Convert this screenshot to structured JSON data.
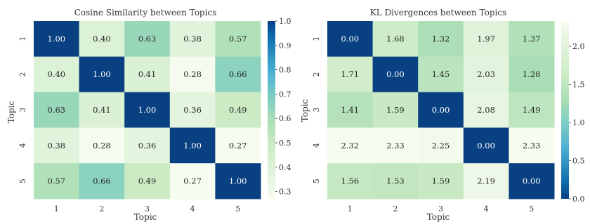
{
  "chart_data": [
    {
      "type": "heatmap",
      "title": "Cosine Similarity between Topics",
      "xlabel": "Topic",
      "ylabel": "Topic",
      "x_categories": [
        "1",
        "2",
        "3",
        "4",
        "5"
      ],
      "y_categories": [
        "1",
        "2",
        "3",
        "4",
        "5"
      ],
      "values": [
        [
          1.0,
          0.4,
          0.63,
          0.38,
          0.57
        ],
        [
          0.4,
          1.0,
          0.41,
          0.28,
          0.66
        ],
        [
          0.63,
          0.41,
          1.0,
          0.36,
          0.49
        ],
        [
          0.38,
          0.28,
          0.36,
          1.0,
          0.27
        ],
        [
          0.57,
          0.66,
          0.49,
          0.27,
          1.0
        ]
      ],
      "cell_labels": [
        [
          "1.00",
          "0.40",
          "0.63",
          "0.38",
          "0.57"
        ],
        [
          "0.40",
          "1.00",
          "0.41",
          "0.28",
          "0.66"
        ],
        [
          "0.63",
          "0.41",
          "1.00",
          "0.36",
          "0.49"
        ],
        [
          "0.38",
          "0.28",
          "0.36",
          "1.00",
          "0.27"
        ],
        [
          "0.57",
          "0.66",
          "0.49",
          "0.27",
          "1.00"
        ]
      ],
      "color_range": [
        0.27,
        1.0
      ],
      "colormap": "GnBu",
      "colorbar_ticks": [
        {
          "value": 1.0,
          "label": "1.0"
        },
        {
          "value": 0.9,
          "label": "0.9"
        },
        {
          "value": 0.8,
          "label": "0.8"
        },
        {
          "value": 0.7,
          "label": "0.7"
        },
        {
          "value": 0.6,
          "label": "0.6"
        },
        {
          "value": 0.5,
          "label": "0.5"
        },
        {
          "value": 0.4,
          "label": "0.4"
        },
        {
          "value": 0.3,
          "label": "0.3"
        }
      ]
    },
    {
      "type": "heatmap",
      "title": "KL Divergences between Topics",
      "xlabel": "Topic",
      "ylabel": "Topic",
      "x_categories": [
        "1",
        "2",
        "3",
        "4",
        "5"
      ],
      "y_categories": [
        "1",
        "2",
        "3",
        "4",
        "5"
      ],
      "values": [
        [
          0.0,
          1.68,
          1.32,
          1.97,
          1.37
        ],
        [
          1.71,
          0.0,
          1.45,
          2.03,
          1.28
        ],
        [
          1.41,
          1.59,
          0.0,
          2.08,
          1.49
        ],
        [
          2.32,
          2.33,
          2.25,
          0.0,
          2.33
        ],
        [
          1.56,
          1.53,
          1.59,
          2.19,
          0.0
        ]
      ],
      "cell_labels": [
        [
          "0.00",
          "1.68",
          "1.32",
          "1.97",
          "1.37"
        ],
        [
          "1.71",
          "0.00",
          "1.45",
          "2.03",
          "1.28"
        ],
        [
          "1.41",
          "1.59",
          "0.00",
          "2.08",
          "1.49"
        ],
        [
          "2.32",
          "2.33",
          "2.25",
          "0.00",
          "2.33"
        ],
        [
          "1.56",
          "1.53",
          "1.59",
          "2.19",
          "0.00"
        ]
      ],
      "color_range": [
        0.0,
        2.33
      ],
      "colormap": "GnBu_r",
      "colorbar_ticks": [
        {
          "value": 2.0,
          "label": "2.0"
        },
        {
          "value": 1.5,
          "label": "1.5"
        },
        {
          "value": 1.0,
          "label": "1.0"
        },
        {
          "value": 0.5,
          "label": "0.5"
        },
        {
          "value": 0.0,
          "label": "0.0"
        }
      ]
    }
  ]
}
